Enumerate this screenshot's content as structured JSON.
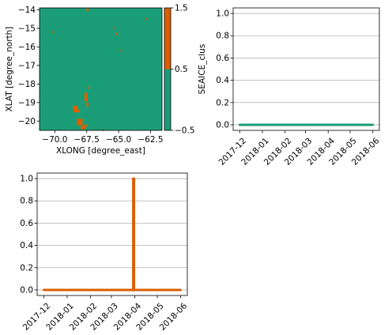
{
  "colors": {
    "green": "#1b9e77",
    "orange": "#d95f02",
    "grid": "#b0b0b0",
    "axis": "#000000"
  },
  "chart_data": [
    {
      "type": "heatmap",
      "xlabel": "XLONG [degree_east]",
      "ylabel": "XLAT [degree_north]",
      "xlim": [
        -71.2,
        -61.6
      ],
      "ylim": [
        -20.5,
        -13.9
      ],
      "x_ticks": [
        -70.0,
        -67.5,
        -65.0,
        -62.5
      ],
      "x_tick_labels": [
        "−70.0",
        "−67.5",
        "−65.0",
        "−62.5"
      ],
      "y_ticks": [
        -20,
        -19,
        -18,
        -17,
        -16,
        -15,
        -14
      ],
      "y_tick_labels": [
        "−20",
        "−19",
        "−18",
        "−17",
        "−16",
        "−15",
        "−14"
      ],
      "background_value": 0,
      "cells_value_1": [
        {
          "lon": -68.4,
          "lat": -19.3,
          "w": 0.35,
          "h": 0.25
        },
        {
          "lon": -68.3,
          "lat": -19.45,
          "w": 0.5,
          "h": 0.15
        },
        {
          "lon": -68.05,
          "lat": -20.05,
          "w": 0.45,
          "h": 0.35
        },
        {
          "lon": -67.8,
          "lat": -20.35,
          "w": 0.35,
          "h": 0.2
        },
        {
          "lon": -67.55,
          "lat": -18.7,
          "w": 0.25,
          "h": 0.45
        },
        {
          "lon": -67.45,
          "lat": -19.1,
          "w": 0.15,
          "h": 0.25
        },
        {
          "lon": -67.6,
          "lat": -20.25,
          "w": 0.2,
          "h": 0.15
        },
        {
          "lon": -67.45,
          "lat": -14.0,
          "w": 0.2,
          "h": 0.1
        },
        {
          "lon": -67.3,
          "lat": -18.2,
          "w": 0.12,
          "h": 0.15
        },
        {
          "lon": -65.35,
          "lat": -15.0,
          "w": 0.08,
          "h": 0.08
        },
        {
          "lon": -65.15,
          "lat": -15.3,
          "w": 0.12,
          "h": 0.12
        },
        {
          "lon": -64.9,
          "lat": -16.2,
          "w": 0.1,
          "h": 0.1
        },
        {
          "lon": -62.8,
          "lat": -14.5,
          "w": 0.1,
          "h": 0.1
        },
        {
          "lon": -70.2,
          "lat": -15.2,
          "w": 0.1,
          "h": 0.1
        },
        {
          "lon": -66.2,
          "lat": -20.5,
          "w": 0.1,
          "h": 0.08
        }
      ],
      "colorbar": {
        "boundaries": [
          -0.5,
          0.5,
          1.5
        ],
        "tick_labels": [
          "−0.5",
          "0.5",
          "1.5"
        ],
        "label": "SEAICE_clus"
      }
    },
    {
      "type": "line",
      "series": [
        {
          "x": [
            "2017-12-01",
            "2018-06-01"
          ],
          "values": [
            0,
            0
          ]
        }
      ],
      "xlim": [
        "2017-11-22",
        "2018-06-10"
      ],
      "ylim": [
        -0.05,
        1.05
      ],
      "x_ticks": [
        "2017-12-01",
        "2018-01-01",
        "2018-02-01",
        "2018-03-01",
        "2018-04-01",
        "2018-05-01",
        "2018-06-01"
      ],
      "x_tick_labels": [
        "2017-12",
        "2018-01",
        "2018-02",
        "2018-03",
        "2018-04",
        "2018-05",
        "2018-06"
      ],
      "y_ticks": [
        0,
        0.2,
        0.4,
        0.6,
        0.8,
        1.0
      ],
      "y_tick_labels": [
        "0.0",
        "0.2",
        "0.4",
        "0.6",
        "0.8",
        "1.0"
      ],
      "grid": "y"
    },
    {
      "type": "line",
      "series": [
        {
          "x": [
            "2017-12-01",
            "2018-03-30",
            "2018-03-30",
            "2018-03-31",
            "2018-03-31",
            "2018-06-01"
          ],
          "values": [
            0,
            0,
            1,
            1,
            0,
            0
          ]
        }
      ],
      "xlim": [
        "2017-11-22",
        "2018-06-10"
      ],
      "ylim": [
        -0.05,
        1.05
      ],
      "x_ticks": [
        "2017-12-01",
        "2018-01-01",
        "2018-02-01",
        "2018-03-01",
        "2018-04-01",
        "2018-05-01",
        "2018-06-01"
      ],
      "x_tick_labels": [
        "2017-12",
        "2018-01",
        "2018-02",
        "2018-03",
        "2018-04",
        "2018-05",
        "2018-06"
      ],
      "y_ticks": [
        0,
        0.2,
        0.4,
        0.6,
        0.8,
        1.0
      ],
      "y_tick_labels": [
        "0.0",
        "0.2",
        "0.4",
        "0.6",
        "0.8",
        "1.0"
      ],
      "grid": "y"
    }
  ]
}
